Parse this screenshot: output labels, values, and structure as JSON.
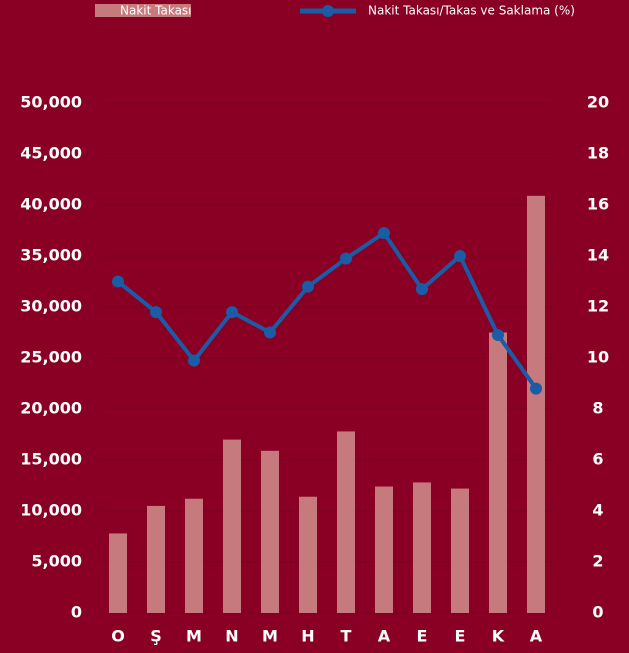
{
  "chart_data": {
    "type": "bar_line",
    "categories": [
      "O",
      "Ş",
      "M",
      "N",
      "M",
      "H",
      "T",
      "A",
      "E",
      "E",
      "K",
      "A"
    ],
    "series": [
      {
        "name": "Nakit Takası",
        "type": "bar",
        "color": "#c67a7d",
        "values": [
          7800,
          10500,
          11200,
          17000,
          15900,
          11400,
          17800,
          12400,
          12800,
          12200,
          27500,
          40900
        ]
      },
      {
        "name": "Nakit Takası/Takas ve Saklama (%)",
        "type": "line",
        "axis": "y2",
        "color": "#1a5ca6",
        "values": [
          13,
          11.8,
          9.9,
          11.8,
          11,
          12.8,
          13.9,
          14.9,
          12.7,
          14,
          10.9,
          8.8
        ]
      }
    ],
    "ylim": [
      0,
      50000
    ],
    "yticks": [
      0,
      {
        "value": 5000,
        "label": "5,000"
      },
      {
        "value": 10000,
        "label": "10,000"
      },
      {
        "value": 15000,
        "label": "15,000"
      },
      {
        "value": 20000,
        "label": "20,000"
      },
      {
        "value": 25000,
        "label": "25,000"
      },
      {
        "value": 30000,
        "label": "30,000"
      },
      {
        "value": 35000,
        "label": "35,000"
      },
      {
        "value": 40000,
        "label": "40,000"
      },
      {
        "value": 45000,
        "label": "45,000"
      },
      {
        "value": 50000,
        "label": "50,000"
      }
    ],
    "y2lim": [
      0,
      20
    ],
    "y2ticks": [
      0,
      2,
      4,
      6,
      8,
      10,
      12,
      14,
      16,
      18,
      20
    ],
    "grid": true
  }
}
